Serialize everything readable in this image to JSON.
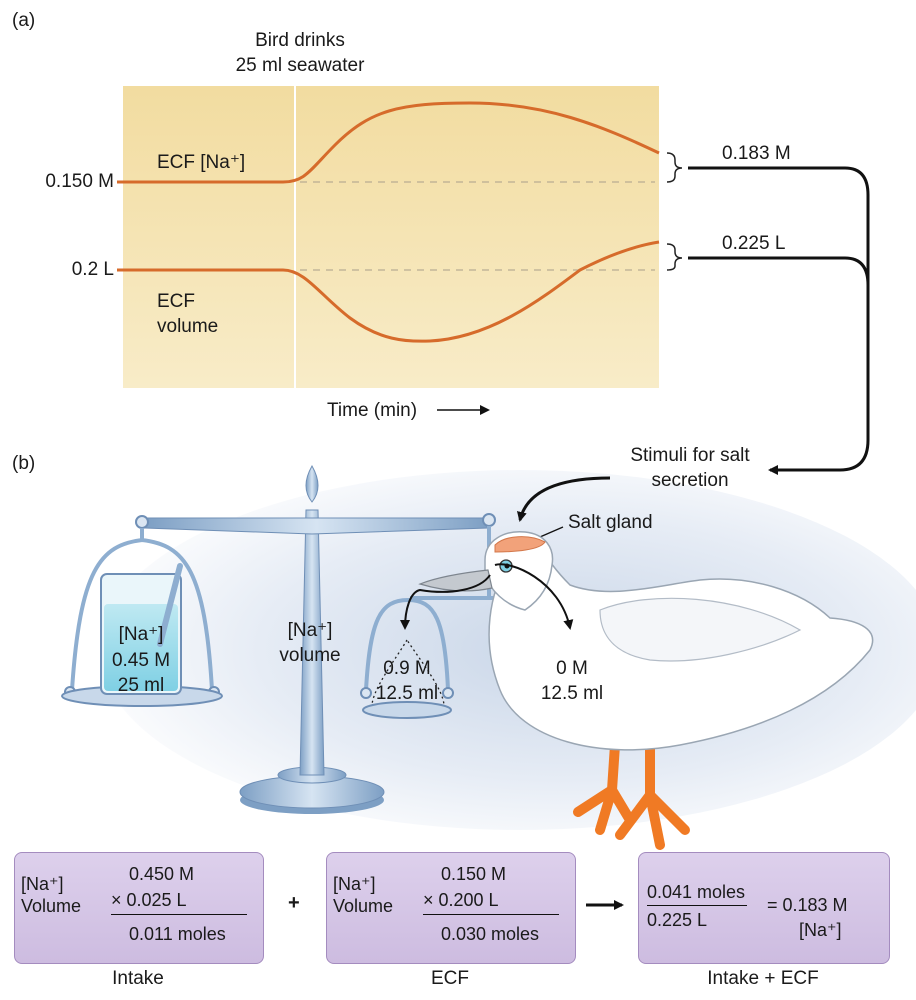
{
  "panel_a": {
    "label": "(a)",
    "event": [
      "Bird drinks",
      "25 ml seawater"
    ],
    "y_tick_na": "0.150 M",
    "y_tick_vol": "0.2 L",
    "curve_na_label": "ECF [Na⁺]",
    "curve_vol_label": [
      "ECF",
      "volume"
    ],
    "result_na": "0.183 M",
    "result_vol": "0.225 L",
    "x_label": "Time (min)"
  },
  "panel_b": {
    "label": "(b)",
    "stimuli": [
      "Stimuli for salt",
      "secretion"
    ],
    "salt_gland": "Salt gland",
    "beam_label": [
      "[Na⁺]",
      "volume"
    ],
    "glass": [
      "[Na⁺]",
      "0.45 M",
      "25 ml"
    ],
    "pan_left": [
      "0.9 M",
      "12.5 ml"
    ],
    "pan_right": [
      "0 M",
      "12.5 ml"
    ]
  },
  "equations": {
    "intake": {
      "labels": [
        "[Na⁺]",
        "Volume"
      ],
      "v1": "0.450 M",
      "v2": "× 0.025 L",
      "result": "0.011 moles",
      "caption": "Intake"
    },
    "plus": "+",
    "ecf": {
      "labels": [
        "[Na⁺]",
        "Volume"
      ],
      "v1": "0.150 M",
      "v2": "× 0.200 L",
      "result": "0.030 moles",
      "caption": "ECF"
    },
    "total": {
      "numerator": "0.041 moles",
      "denominator": "0.225 L",
      "equals": "= 0.183 M",
      "unit": "[Na⁺]",
      "caption": "Intake + ECF"
    }
  },
  "colors": {
    "chart_bg": "#f4e3b0",
    "curve": "#d86a2a",
    "box_fill": "#d8c9e8",
    "scale": "#9fbcd8"
  }
}
